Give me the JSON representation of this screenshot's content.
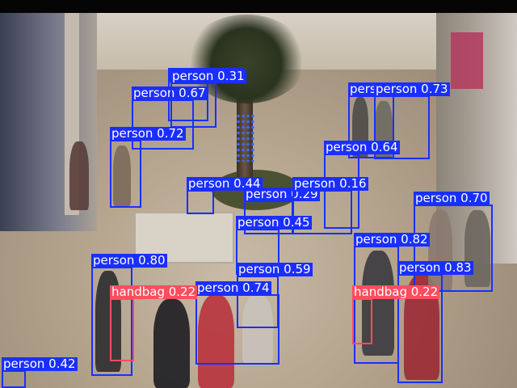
{
  "colors": {
    "person": "#1a2fff",
    "handbag": "#ff4d5e"
  },
  "detections": [
    {
      "label": "person",
      "score": "0.16"
    },
    {
      "label": "person",
      "score": "0.67"
    },
    {
      "label": "person",
      "score": "0.31"
    },
    {
      "label": "person",
      "score": "0.77"
    },
    {
      "label": "person",
      "score": "0.73"
    },
    {
      "label": "person",
      "score": "0.72"
    },
    {
      "label": "person",
      "score": "0.64"
    },
    {
      "label": "person",
      "score": "0.44"
    },
    {
      "label": "person",
      "score": "0.29"
    },
    {
      "label": "person",
      "score": "0.16"
    },
    {
      "label": "person",
      "score": "0.70"
    },
    {
      "label": "person",
      "score": "0.45"
    },
    {
      "label": "person",
      "score": "0.82"
    },
    {
      "label": "person",
      "score": "0.80"
    },
    {
      "label": "person",
      "score": "0.59"
    },
    {
      "label": "person",
      "score": "0.83"
    },
    {
      "label": "person",
      "score": "0.74"
    },
    {
      "label": "handbag",
      "score": "0.22"
    },
    {
      "label": "handbag",
      "score": "0.22"
    },
    {
      "label": "person",
      "score": "0.42"
    }
  ]
}
